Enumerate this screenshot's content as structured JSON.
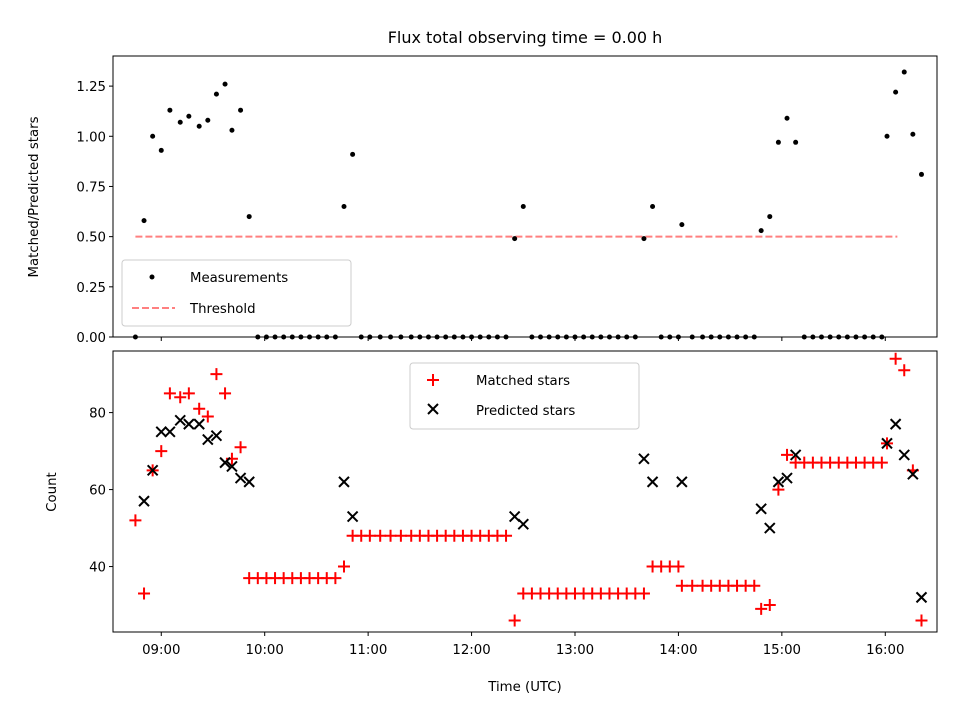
{
  "chart_data": [
    {
      "type": "scatter",
      "title": "Flux total observing time = 0.00 h",
      "xlabel": "",
      "ylabel": "Matched/Predicted stars",
      "xlim": [
        "08:32",
        "16:30"
      ],
      "ylim": [
        0,
        1.4
      ],
      "yticks": [
        "0.00",
        "0.25",
        "0.50",
        "0.75",
        "1.00",
        "1.25"
      ],
      "legend_position": "lower-left",
      "series": [
        {
          "name": "Measurements",
          "marker": "dot",
          "color": "#000000",
          "points": [
            [
              "08:45",
              0.0
            ],
            [
              "08:50",
              0.58
            ],
            [
              "08:55",
              1.0
            ],
            [
              "09:00",
              0.93
            ],
            [
              "09:05",
              1.13
            ],
            [
              "09:11",
              1.07
            ],
            [
              "09:16",
              1.1
            ],
            [
              "09:22",
              1.05
            ],
            [
              "09:27",
              1.08
            ],
            [
              "09:32",
              1.21
            ],
            [
              "09:37",
              1.26
            ],
            [
              "09:41",
              1.03
            ],
            [
              "09:46",
              1.13
            ],
            [
              "09:51",
              0.6
            ],
            [
              "09:56",
              0.0
            ],
            [
              "10:01",
              0.0
            ],
            [
              "10:06",
              0.0
            ],
            [
              "10:11",
              0.0
            ],
            [
              "10:16",
              0.0
            ],
            [
              "10:21",
              0.0
            ],
            [
              "10:26",
              0.0
            ],
            [
              "10:31",
              0.0
            ],
            [
              "10:36",
              0.0
            ],
            [
              "10:41",
              0.0
            ],
            [
              "10:46",
              0.65
            ],
            [
              "10:51",
              0.91
            ],
            [
              "10:56",
              0.0
            ],
            [
              "11:01",
              0.0
            ],
            [
              "11:07",
              0.0
            ],
            [
              "11:13",
              0.0
            ],
            [
              "11:19",
              0.0
            ],
            [
              "11:25",
              0.0
            ],
            [
              "11:30",
              0.0
            ],
            [
              "11:35",
              0.0
            ],
            [
              "11:40",
              0.0
            ],
            [
              "11:45",
              0.0
            ],
            [
              "11:50",
              0.0
            ],
            [
              "11:55",
              0.0
            ],
            [
              "12:00",
              0.0
            ],
            [
              "12:05",
              0.0
            ],
            [
              "12:10",
              0.0
            ],
            [
              "12:15",
              0.0
            ],
            [
              "12:20",
              0.0
            ],
            [
              "12:25",
              0.49
            ],
            [
              "12:30",
              0.65
            ],
            [
              "12:35",
              0.0
            ],
            [
              "12:40",
              0.0
            ],
            [
              "12:45",
              0.0
            ],
            [
              "12:50",
              0.0
            ],
            [
              "12:55",
              0.0
            ],
            [
              "13:00",
              0.0
            ],
            [
              "13:05",
              0.0
            ],
            [
              "13:10",
              0.0
            ],
            [
              "13:15",
              0.0
            ],
            [
              "13:20",
              0.0
            ],
            [
              "13:25",
              0.0
            ],
            [
              "13:30",
              0.0
            ],
            [
              "13:35",
              0.0
            ],
            [
              "13:40",
              0.49
            ],
            [
              "13:45",
              0.65
            ],
            [
              "13:50",
              0.0
            ],
            [
              "13:55",
              0.0
            ],
            [
              "14:00",
              0.0
            ],
            [
              "14:02",
              0.56
            ],
            [
              "14:08",
              0.0
            ],
            [
              "14:14",
              0.0
            ],
            [
              "14:19",
              0.0
            ],
            [
              "14:24",
              0.0
            ],
            [
              "14:29",
              0.0
            ],
            [
              "14:34",
              0.0
            ],
            [
              "14:39",
              0.0
            ],
            [
              "14:44",
              0.0
            ],
            [
              "14:48",
              0.53
            ],
            [
              "14:53",
              0.6
            ],
            [
              "14:58",
              0.97
            ],
            [
              "15:03",
              1.09
            ],
            [
              "15:08",
              0.97
            ],
            [
              "15:13",
              0.0
            ],
            [
              "15:18",
              0.0
            ],
            [
              "15:23",
              0.0
            ],
            [
              "15:28",
              0.0
            ],
            [
              "15:33",
              0.0
            ],
            [
              "15:38",
              0.0
            ],
            [
              "15:43",
              0.0
            ],
            [
              "15:48",
              0.0
            ],
            [
              "15:53",
              0.0
            ],
            [
              "15:58",
              0.0
            ],
            [
              "16:01",
              1.0
            ],
            [
              "16:06",
              1.22
            ],
            [
              "16:11",
              1.32
            ],
            [
              "16:16",
              1.01
            ],
            [
              "16:21",
              0.81
            ]
          ]
        },
        {
          "name": "Threshold",
          "marker": "dashed-line",
          "color": "#ff8080",
          "points": [
            [
              "08:45",
              0.5
            ],
            [
              "16:07",
              0.5
            ]
          ]
        }
      ]
    },
    {
      "type": "scatter",
      "title": "",
      "xlabel": "Time (UTC)",
      "ylabel": "Count",
      "xlim": [
        "08:32",
        "16:30"
      ],
      "ylim": [
        23,
        96
      ],
      "yticks": [
        "40",
        "60",
        "80"
      ],
      "xticks": [
        "09:00",
        "10:00",
        "11:00",
        "12:00",
        "13:00",
        "14:00",
        "15:00",
        "16:00"
      ],
      "legend_position": "top-center",
      "series": [
        {
          "name": "Matched stars",
          "marker": "plus",
          "color": "#ff0000",
          "points": [
            [
              "08:45",
              52
            ],
            [
              "08:50",
              33
            ],
            [
              "08:55",
              65
            ],
            [
              "09:00",
              70
            ],
            [
              "09:05",
              85
            ],
            [
              "09:11",
              84
            ],
            [
              "09:16",
              85
            ],
            [
              "09:22",
              81
            ],
            [
              "09:27",
              79
            ],
            [
              "09:32",
              90
            ],
            [
              "09:37",
              85
            ],
            [
              "09:41",
              68
            ],
            [
              "09:46",
              71
            ],
            [
              "09:51",
              37
            ],
            [
              "09:56",
              37
            ],
            [
              "10:01",
              37
            ],
            [
              "10:06",
              37
            ],
            [
              "10:11",
              37
            ],
            [
              "10:16",
              37
            ],
            [
              "10:21",
              37
            ],
            [
              "10:26",
              37
            ],
            [
              "10:31",
              37
            ],
            [
              "10:36",
              37
            ],
            [
              "10:41",
              37
            ],
            [
              "10:46",
              40
            ],
            [
              "10:51",
              48
            ],
            [
              "10:56",
              48
            ],
            [
              "11:01",
              48
            ],
            [
              "11:07",
              48
            ],
            [
              "11:13",
              48
            ],
            [
              "11:19",
              48
            ],
            [
              "11:25",
              48
            ],
            [
              "11:30",
              48
            ],
            [
              "11:35",
              48
            ],
            [
              "11:40",
              48
            ],
            [
              "11:45",
              48
            ],
            [
              "11:50",
              48
            ],
            [
              "11:55",
              48
            ],
            [
              "12:00",
              48
            ],
            [
              "12:05",
              48
            ],
            [
              "12:10",
              48
            ],
            [
              "12:15",
              48
            ],
            [
              "12:20",
              48
            ],
            [
              "12:25",
              26
            ],
            [
              "12:30",
              33
            ],
            [
              "12:35",
              33
            ],
            [
              "12:40",
              33
            ],
            [
              "12:45",
              33
            ],
            [
              "12:50",
              33
            ],
            [
              "12:55",
              33
            ],
            [
              "13:00",
              33
            ],
            [
              "13:05",
              33
            ],
            [
              "13:10",
              33
            ],
            [
              "13:15",
              33
            ],
            [
              "13:20",
              33
            ],
            [
              "13:25",
              33
            ],
            [
              "13:30",
              33
            ],
            [
              "13:35",
              33
            ],
            [
              "13:40",
              33
            ],
            [
              "13:45",
              40
            ],
            [
              "13:50",
              40
            ],
            [
              "13:55",
              40
            ],
            [
              "14:00",
              40
            ],
            [
              "14:02",
              35
            ],
            [
              "14:08",
              35
            ],
            [
              "14:14",
              35
            ],
            [
              "14:19",
              35
            ],
            [
              "14:24",
              35
            ],
            [
              "14:29",
              35
            ],
            [
              "14:34",
              35
            ],
            [
              "14:39",
              35
            ],
            [
              "14:44",
              35
            ],
            [
              "14:48",
              29
            ],
            [
              "14:53",
              30
            ],
            [
              "14:58",
              60
            ],
            [
              "15:03",
              69
            ],
            [
              "15:08",
              67
            ],
            [
              "15:13",
              67
            ],
            [
              "15:18",
              67
            ],
            [
              "15:23",
              67
            ],
            [
              "15:28",
              67
            ],
            [
              "15:33",
              67
            ],
            [
              "15:38",
              67
            ],
            [
              "15:43",
              67
            ],
            [
              "15:48",
              67
            ],
            [
              "15:53",
              67
            ],
            [
              "15:58",
              67
            ],
            [
              "16:01",
              72
            ],
            [
              "16:06",
              94
            ],
            [
              "16:11",
              91
            ],
            [
              "16:16",
              65
            ],
            [
              "16:21",
              26
            ]
          ]
        },
        {
          "name": "Predicted stars",
          "marker": "x",
          "color": "#000000",
          "points": [
            [
              "08:50",
              57
            ],
            [
              "08:55",
              65
            ],
            [
              "09:00",
              75
            ],
            [
              "09:05",
              75
            ],
            [
              "09:11",
              78
            ],
            [
              "09:16",
              77
            ],
            [
              "09:22",
              77
            ],
            [
              "09:27",
              73
            ],
            [
              "09:32",
              74
            ],
            [
              "09:37",
              67
            ],
            [
              "09:41",
              66
            ],
            [
              "09:46",
              63
            ],
            [
              "09:51",
              62
            ],
            [
              "10:46",
              62
            ],
            [
              "10:51",
              53
            ],
            [
              "12:25",
              53
            ],
            [
              "12:30",
              51
            ],
            [
              "13:40",
              68
            ],
            [
              "13:45",
              62
            ],
            [
              "14:02",
              62
            ],
            [
              "14:48",
              55
            ],
            [
              "14:53",
              50
            ],
            [
              "14:58",
              62
            ],
            [
              "15:03",
              63
            ],
            [
              "15:08",
              69
            ],
            [
              "16:01",
              72
            ],
            [
              "16:06",
              77
            ],
            [
              "16:11",
              69
            ],
            [
              "16:16",
              64
            ],
            [
              "16:21",
              32
            ]
          ]
        }
      ]
    }
  ]
}
